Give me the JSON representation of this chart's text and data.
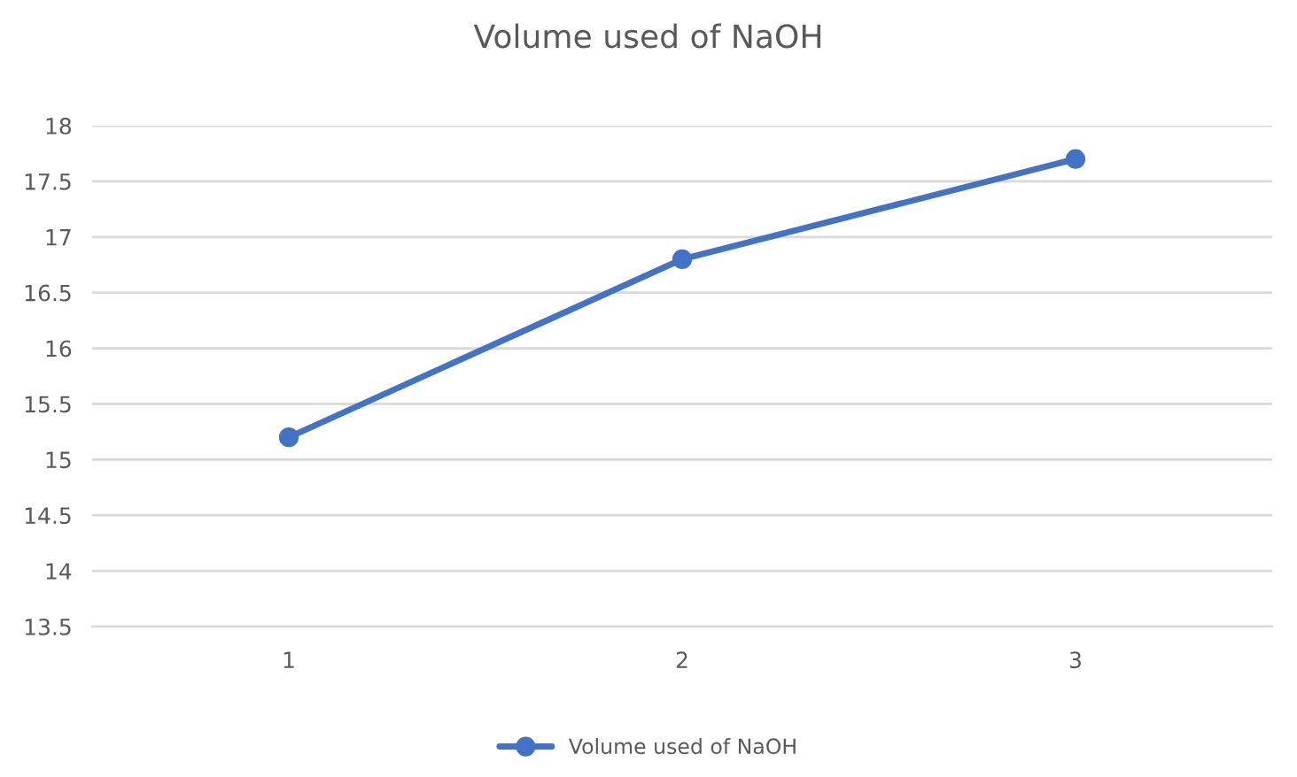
{
  "chart_data": {
    "type": "line",
    "title": "Volume used of NaOH",
    "categories": [
      "1",
      "2",
      "3"
    ],
    "series": [
      {
        "name": "Volume used of NaOH",
        "color": "#4472c4",
        "values": [
          15.2,
          16.8,
          17.7
        ]
      }
    ],
    "ylim": [
      13.5,
      18
    ],
    "yticks": [
      13.5,
      14,
      14.5,
      15,
      15.5,
      16,
      16.5,
      17,
      17.5,
      18
    ],
    "grid": "y",
    "legend": "bottom",
    "marker": "circle"
  }
}
